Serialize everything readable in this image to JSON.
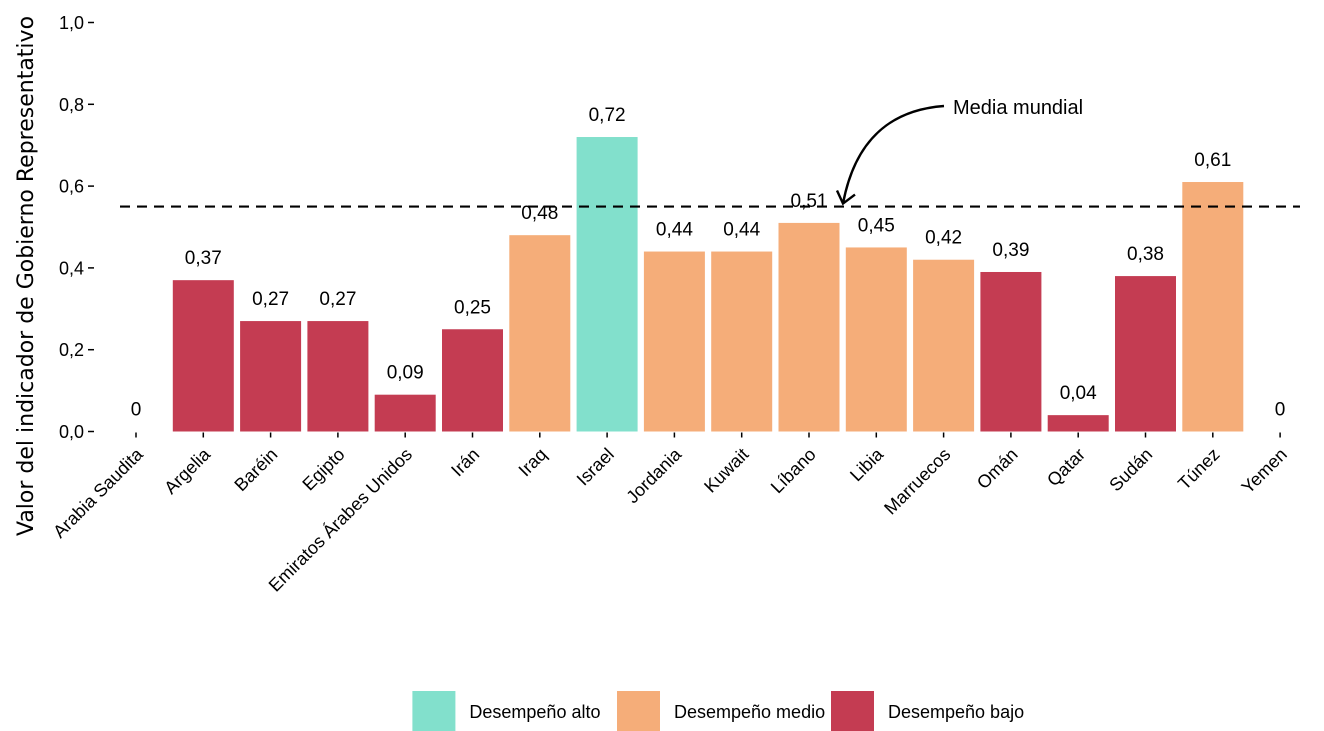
{
  "chart_data": {
    "type": "bar",
    "title": "",
    "ylabel": "Valor del indicador de Gobierno Representativo",
    "xlabel": "",
    "ylim": [
      0,
      1
    ],
    "yticks": [
      0,
      0.2,
      0.4,
      0.6,
      0.8,
      1.0
    ],
    "ytick_labels": [
      "0,0",
      "0,2",
      "0,4",
      "0,6",
      "0,8",
      "1,0"
    ],
    "grid": false,
    "categories": [
      "Arabia Saudita",
      "Argelia",
      "Baréin",
      "Egipto",
      "Emiratos Árabes Unidos",
      "Irán",
      "Iraq",
      "Israel",
      "Jordania",
      "Kuwait",
      "Líbano",
      "Libia",
      "Marruecos",
      "Omán",
      "Qatar",
      "Sudán",
      "Túnez",
      "Yemen"
    ],
    "values": [
      0,
      0.37,
      0.27,
      0.27,
      0.09,
      0.25,
      0.48,
      0.72,
      0.44,
      0.44,
      0.51,
      0.45,
      0.42,
      0.39,
      0.04,
      0.38,
      0.61,
      0
    ],
    "value_labels": [
      "0",
      "0,37",
      "0,27",
      "0,27",
      "0,09",
      "0,25",
      "0,48",
      "0,72",
      "0,44",
      "0,44",
      "0,51",
      "0,45",
      "0,42",
      "0,39",
      "0,04",
      "0,38",
      "0,61",
      "0"
    ],
    "performance": [
      "bajo",
      "bajo",
      "bajo",
      "bajo",
      "bajo",
      "bajo",
      "medio",
      "alto",
      "medio",
      "medio",
      "medio",
      "medio",
      "medio",
      "bajo",
      "bajo",
      "bajo",
      "medio",
      "bajo"
    ],
    "reference_line": {
      "value": 0.55,
      "label": "Media mundial",
      "style": "dashed"
    },
    "legend": {
      "position": "bottom",
      "entries": [
        {
          "key": "alto",
          "label": "Desempeño alto",
          "color": "#82E0CC"
        },
        {
          "key": "medio",
          "label": "Desempeño medio",
          "color": "#F5AD79"
        },
        {
          "key": "bajo",
          "label": "Desempeño bajo",
          "color": "#C43C52"
        }
      ]
    }
  }
}
